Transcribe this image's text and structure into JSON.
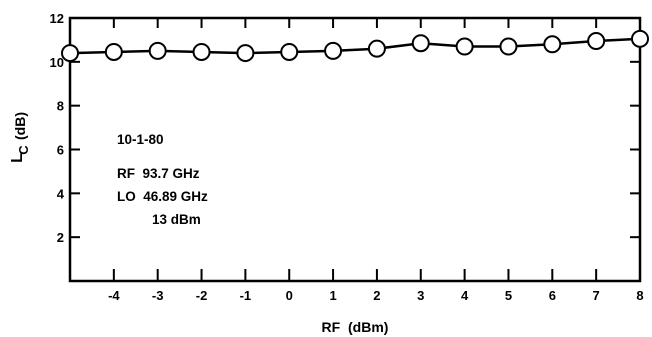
{
  "chart_data": {
    "type": "line",
    "x": [
      -5,
      -4,
      -3,
      -2,
      -1,
      0,
      1,
      2,
      3,
      4,
      5,
      6,
      7,
      8
    ],
    "series": [
      {
        "values": [
          10.4,
          10.45,
          10.5,
          10.45,
          10.4,
          10.45,
          10.5,
          10.6,
          10.85,
          10.7,
          10.7,
          10.8,
          10.95,
          11.05
        ]
      }
    ],
    "xlabel": "RF  (dBm)",
    "ylabel_main": "L",
    "ylabel_sub": "C",
    "ylabel_unit": "(dB)",
    "xlim": [
      -5,
      8
    ],
    "ylim": [
      0,
      12
    ],
    "x_ticks": [
      -4,
      -3,
      -2,
      -1,
      0,
      1,
      2,
      3,
      4,
      5,
      6,
      7,
      8
    ],
    "x_tick_labels": [
      "-4",
      "-3",
      "-2",
      "-1",
      "0",
      "1",
      "2",
      "3",
      "4",
      "5",
      "6",
      "7",
      "8"
    ],
    "y_ticks": [
      2,
      4,
      6,
      8,
      10,
      12
    ],
    "y_tick_labels": [
      "2",
      "4",
      "6",
      "8",
      "10",
      "12"
    ],
    "grid": false,
    "marker": "open-circle",
    "annotations": [
      "10-1-80",
      "RF  93.7 GHz",
      "LO  46.89 GHz",
      "13 dBm"
    ]
  }
}
